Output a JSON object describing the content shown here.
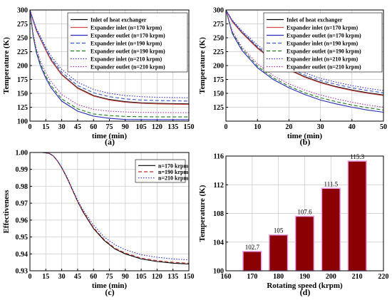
{
  "chart_data": [
    {
      "panel": "(a)",
      "type": "line",
      "xlabel": "time (min)",
      "ylabel": "Temperature (K)",
      "xlim": [
        0,
        150
      ],
      "ylim": [
        100,
        300
      ],
      "xticks": [
        0,
        15,
        30,
        45,
        60,
        75,
        90,
        105,
        120,
        135,
        150
      ],
      "yticks": [
        100,
        125,
        150,
        175,
        200,
        225,
        250,
        275,
        300
      ],
      "grid": true,
      "legend_position": "top-right",
      "series": [
        {
          "name": "Inlet of heat exchanger",
          "color": "#000000",
          "dash": "solid",
          "x": [
            0,
            3,
            6,
            10,
            15,
            20,
            30,
            45,
            60,
            75,
            90,
            105,
            120,
            150
          ],
          "y": [
            300,
            281,
            264,
            248,
            228,
            210,
            184,
            160,
            146,
            139,
            135,
            133,
            132,
            131
          ]
        },
        {
          "name": "Expander inlet (n=170 krpm)",
          "color": "#d04a4a",
          "dash": "solid",
          "x": [
            0,
            3,
            6,
            10,
            15,
            20,
            30,
            45,
            60,
            75,
            90,
            105,
            120,
            150
          ],
          "y": [
            300,
            281,
            263,
            247,
            227,
            209,
            183,
            159,
            145,
            138,
            134,
            132,
            131,
            130
          ]
        },
        {
          "name": "Expander outlet (n=170 krpm)",
          "color": "#2a2ab8",
          "dash": "solid",
          "x": [
            0,
            3,
            6,
            10,
            15,
            20,
            30,
            45,
            60,
            75,
            90,
            105,
            120,
            150
          ],
          "y": [
            300,
            253,
            224,
            199,
            177,
            160,
            136,
            118,
            109,
            105,
            103,
            102.8,
            102.7,
            102.7
          ]
        },
        {
          "name": "Expander inlet (n=190 krpm)",
          "color": "#3a58c8",
          "dash": "dashed",
          "x": [
            0,
            3,
            6,
            10,
            15,
            20,
            30,
            45,
            60,
            75,
            90,
            105,
            120,
            150
          ],
          "y": [
            300,
            282,
            265,
            249,
            230,
            213,
            188,
            164,
            151,
            144,
            140,
            138,
            137,
            136
          ]
        },
        {
          "name": "Expander outlet (n=190 krpm)",
          "color": "#1a7a1a",
          "dash": "dashed",
          "x": [
            0,
            3,
            6,
            10,
            15,
            20,
            30,
            45,
            60,
            75,
            90,
            105,
            120,
            150
          ],
          "y": [
            300,
            255,
            227,
            203,
            181,
            164,
            140,
            122,
            113,
            110,
            108.5,
            108,
            107.7,
            107.6
          ]
        },
        {
          "name": "Expander inlet (n=210 krpm)",
          "color": "#3030c8",
          "dash": "dotted",
          "x": [
            0,
            3,
            6,
            10,
            15,
            20,
            30,
            45,
            60,
            75,
            90,
            105,
            120,
            150
          ],
          "y": [
            300,
            283,
            267,
            252,
            233,
            217,
            193,
            170,
            157,
            150,
            146,
            144,
            143,
            142
          ]
        },
        {
          "name": "Expander outlet (n=210 krpm)",
          "color": "#b030b0",
          "dash": "dotted",
          "x": [
            0,
            3,
            6,
            10,
            15,
            20,
            30,
            45,
            60,
            75,
            90,
            105,
            120,
            150
          ],
          "y": [
            300,
            258,
            231,
            208,
            187,
            171,
            148,
            130,
            121,
            118,
            116.5,
            115.8,
            115.5,
            115.3
          ]
        }
      ]
    },
    {
      "panel": "(b)",
      "type": "line",
      "xlabel": "time (min)",
      "ylabel": "Temperature (K)",
      "xlim": [
        0,
        50
      ],
      "ylim": [
        100,
        300
      ],
      "xticks": [
        0,
        10,
        20,
        30,
        40,
        50
      ],
      "yticks": [
        125,
        150,
        175,
        200,
        225,
        250,
        275,
        300
      ],
      "grid": true,
      "legend_position": "top-right",
      "series": [
        {
          "name": "Inlet of heat exchanger",
          "color": "#000000",
          "dash": "solid",
          "x": [
            0,
            2,
            5,
            10,
            15,
            20,
            25,
            30,
            35,
            40,
            45,
            50
          ],
          "y": [
            300,
            280,
            260,
            232,
            210,
            193,
            180,
            170,
            162,
            156,
            151,
            147
          ]
        },
        {
          "name": "Expander inlet (n=170 krpm)",
          "color": "#d04a4a",
          "dash": "solid",
          "x": [
            0,
            2,
            5,
            10,
            15,
            20,
            25,
            30,
            35,
            40,
            45,
            50
          ],
          "y": [
            300,
            279,
            259,
            231,
            209,
            192,
            179,
            169,
            161,
            155,
            150,
            146
          ]
        },
        {
          "name": "Expander outlet (n=170 krpm)",
          "color": "#2a2ab8",
          "dash": "solid",
          "x": [
            0,
            2,
            5,
            10,
            15,
            20,
            25,
            30,
            35,
            40,
            45,
            50
          ],
          "y": [
            300,
            258,
            228,
            196,
            175,
            160,
            148,
            138,
            131,
            125,
            120,
            116
          ]
        },
        {
          "name": "Expander inlet (n=190 krpm)",
          "color": "#3a58c8",
          "dash": "dashed",
          "x": [
            0,
            2,
            5,
            10,
            15,
            20,
            25,
            30,
            35,
            40,
            45,
            50
          ],
          "y": [
            300,
            281,
            261,
            234,
            213,
            196,
            183,
            173,
            166,
            160,
            155,
            151
          ]
        },
        {
          "name": "Expander outlet (n=190 krpm)",
          "color": "#1a7a1a",
          "dash": "dashed",
          "x": [
            0,
            2,
            5,
            10,
            15,
            20,
            25,
            30,
            35,
            40,
            45,
            50
          ],
          "y": [
            300,
            260,
            231,
            199,
            178,
            163,
            151,
            142,
            135,
            129,
            124,
            120
          ]
        },
        {
          "name": "Expander inlet (n=210 krpm)",
          "color": "#3030c8",
          "dash": "dotted",
          "x": [
            0,
            2,
            5,
            10,
            15,
            20,
            25,
            30,
            35,
            40,
            45,
            50
          ],
          "y": [
            300,
            282,
            263,
            237,
            216,
            199,
            187,
            177,
            170,
            164,
            159,
            155
          ]
        },
        {
          "name": "Expander outlet (n=210 krpm)",
          "color": "#b030b0",
          "dash": "dotted",
          "x": [
            0,
            2,
            5,
            10,
            15,
            20,
            25,
            30,
            35,
            40,
            45,
            50
          ],
          "y": [
            300,
            262,
            234,
            203,
            182,
            167,
            156,
            147,
            140,
            134,
            129,
            125
          ]
        }
      ]
    },
    {
      "panel": "(c)",
      "type": "line",
      "xlabel": "time (min)",
      "ylabel": "Effectiveness",
      "xlim": [
        0,
        150
      ],
      "ylim": [
        0.93,
        1.0
      ],
      "xticks": [
        0,
        15,
        30,
        45,
        60,
        75,
        90,
        105,
        120,
        135,
        150
      ],
      "yticks": [
        0.93,
        0.94,
        0.95,
        0.96,
        0.97,
        0.98,
        0.99,
        1.0
      ],
      "grid": true,
      "legend_position": "top-right",
      "series": [
        {
          "name": "n=170 krpm",
          "color": "#000000",
          "dash": "solid",
          "x": [
            0,
            12,
            18,
            22,
            26,
            30,
            35,
            40,
            45,
            50,
            60,
            70,
            80,
            90,
            105,
            120,
            135,
            150
          ],
          "y": [
            1.0,
            1.0,
            0.9995,
            0.998,
            0.995,
            0.991,
            0.985,
            0.978,
            0.971,
            0.965,
            0.955,
            0.948,
            0.943,
            0.94,
            0.937,
            0.9355,
            0.9345,
            0.934
          ]
        },
        {
          "name": "n=190 krpm",
          "color": "#c03030",
          "dash": "dashed",
          "x": [
            0,
            12,
            18,
            22,
            26,
            30,
            35,
            40,
            45,
            50,
            60,
            70,
            80,
            90,
            105,
            120,
            135,
            150
          ],
          "y": [
            1.0,
            1.0,
            0.9995,
            0.998,
            0.995,
            0.991,
            0.985,
            0.978,
            0.971,
            0.9655,
            0.9555,
            0.9485,
            0.9435,
            0.9405,
            0.9375,
            0.936,
            0.935,
            0.9345
          ]
        },
        {
          "name": "n=210 krpm",
          "color": "#3030c8",
          "dash": "dotted",
          "x": [
            0,
            12,
            18,
            22,
            26,
            30,
            35,
            40,
            45,
            50,
            60,
            70,
            80,
            90,
            105,
            120,
            135,
            150
          ],
          "y": [
            1.0,
            1.0,
            0.9995,
            0.998,
            0.995,
            0.9912,
            0.9855,
            0.9785,
            0.9718,
            0.9662,
            0.957,
            0.95,
            0.9455,
            0.9425,
            0.9395,
            0.938,
            0.937,
            0.9365
          ]
        }
      ]
    },
    {
      "panel": "(d)",
      "type": "bar",
      "xlabel": "Rotating speed (krpm)",
      "ylabel": "Temperature (K)",
      "xlim": [
        160,
        220
      ],
      "ylim": [
        100,
        116
      ],
      "xticks": [
        160,
        170,
        180,
        190,
        200,
        210,
        220
      ],
      "yticks": [
        100,
        104,
        108,
        112,
        116
      ],
      "grid": true,
      "bar_color": "#8b0000",
      "x": [
        170,
        180,
        190,
        200,
        210
      ],
      "values": [
        102.7,
        105,
        107.6,
        111.5,
        115.3
      ],
      "data_labels": [
        "102.7",
        "105",
        "107.6",
        "111.5",
        "115.3"
      ]
    }
  ]
}
